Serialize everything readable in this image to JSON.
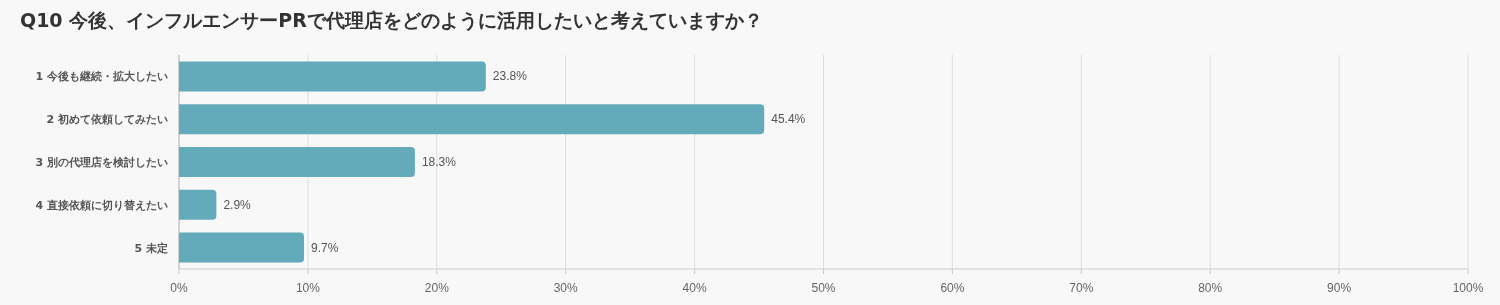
{
  "chart_data": {
    "type": "bar",
    "orientation": "horizontal",
    "title": "Q10 今後、インフルエンサーPRで代理店をどのように活用したいと考えていますか？",
    "categories": [
      "1 今後も継続・拡大したい",
      "2 初めて依頼してみたい",
      "3 別の代理店を検討したい",
      "4 直接依頼に切り替えたい",
      "5 未定"
    ],
    "values": [
      23.8,
      45.4,
      18.3,
      2.9,
      9.7
    ],
    "value_labels": [
      "23.8%",
      "45.4%",
      "18.3%",
      "2.9%",
      "9.7%"
    ],
    "color": "#63aabb",
    "xlim": [
      0,
      100
    ],
    "xticks": [
      {
        "value": 0,
        "label": "0%"
      },
      {
        "value": 10,
        "label": "10%"
      },
      {
        "value": 20,
        "label": "20%"
      },
      {
        "value": 30,
        "label": "30%"
      },
      {
        "value": 40,
        "label": "40%"
      },
      {
        "value": 50,
        "label": "50%"
      },
      {
        "value": 60,
        "label": "60%"
      },
      {
        "value": 70,
        "label": "70%"
      },
      {
        "value": 80,
        "label": "80%"
      },
      {
        "value": 90,
        "label": "90%"
      },
      {
        "value": 100,
        "label": "100%"
      }
    ],
    "grid": "x"
  }
}
